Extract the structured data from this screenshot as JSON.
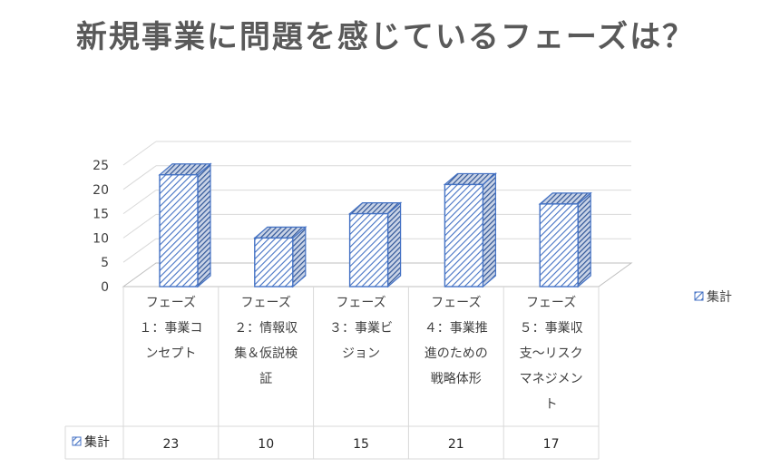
{
  "chart_data": {
    "type": "bar",
    "title": "新規事業に問題を感じているフェーズは？",
    "categories": [
      "フェーズ１：事業コンセプト",
      "フェーズ２：情報収集＆仮説検証",
      "フェーズ３：事業ビジョン",
      "フェーズ４：事業推進のための戦略体形",
      "フェーズ５：事業収支～リスクマネジメント"
    ],
    "category_lines": [
      [
        "フェーズ",
        "１：事業コ",
        "ンセプト"
      ],
      [
        "フェーズ",
        "２：情報収",
        "集＆仮説検",
        "証"
      ],
      [
        "フェーズ",
        "３：事業ビ",
        "ジョン"
      ],
      [
        "フェーズ",
        "４：事業推",
        "進のための",
        "戦略体形"
      ],
      [
        "フェーズ",
        "５：事業収",
        "支～リスク",
        "マネジメン",
        "ト"
      ]
    ],
    "series": [
      {
        "name": "集計",
        "values": [
          23,
          10,
          15,
          21,
          17
        ]
      }
    ],
    "y_ticks": [
      "0",
      "5",
      "10",
      "15",
      "20",
      "25"
    ],
    "ylim": [
      0,
      25
    ],
    "legend_position": "right",
    "data_table": true,
    "grid": true,
    "colors": {
      "bar_edge": "#4472c4",
      "bar_hatch": "#4472c4",
      "grid": "#d9d9d9",
      "axis_text": "#404040"
    }
  }
}
